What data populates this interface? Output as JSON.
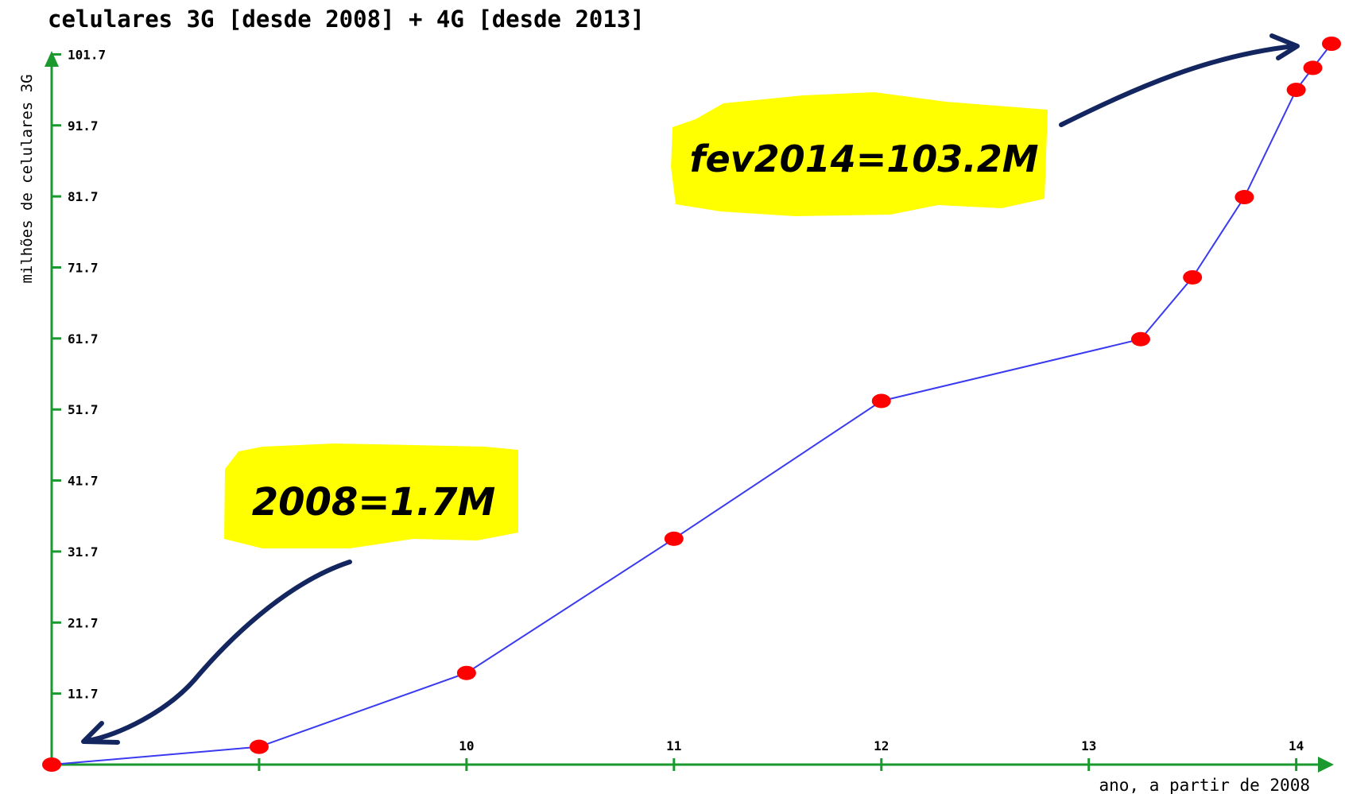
{
  "chart_data": {
    "type": "line",
    "title": "celulares 3G [desde 2008] + 4G [desde 2013]",
    "xlabel": "ano, a partir de 2008",
    "ylabel": "milhões de celulares 3G",
    "x_ticks": [
      "10",
      "11",
      "12",
      "13",
      "14"
    ],
    "x_tick_values": [
      10,
      11,
      12,
      13,
      14
    ],
    "y_ticks": [
      "11.7",
      "21.7",
      "31.7",
      "41.7",
      "51.7",
      "61.7",
      "71.7",
      "81.7",
      "91.7",
      "101.7"
    ],
    "y_tick_values": [
      11.7,
      21.7,
      31.7,
      41.7,
      51.7,
      61.7,
      71.7,
      81.7,
      91.7,
      101.7
    ],
    "xlim": [
      8,
      14.17
    ],
    "ylim": [
      1.7,
      103.2
    ],
    "grid": false,
    "series": [
      {
        "x": [
          8,
          9,
          10,
          11,
          12,
          13.25,
          13.5,
          13.75,
          14,
          14.08,
          14.17
        ],
        "y": [
          1.7,
          4.2,
          14.6,
          33.5,
          52.9,
          61.6,
          70.3,
          81.6,
          96.7,
          99.8,
          103.2
        ]
      }
    ],
    "annotations": [
      {
        "text": "fev2014=103.2M",
        "points_to": {
          "x": 14.17,
          "y": 103.2
        }
      },
      {
        "text": "2008=1.7M",
        "points_to": {
          "x": 8.15,
          "y": 4.0
        }
      }
    ],
    "colors": {
      "axis": "#1a9a2e",
      "line": "#3a3af0",
      "marker": "#ff0000",
      "highlight": "#ffff00",
      "arrow": "#142660",
      "text": "#000000"
    }
  }
}
